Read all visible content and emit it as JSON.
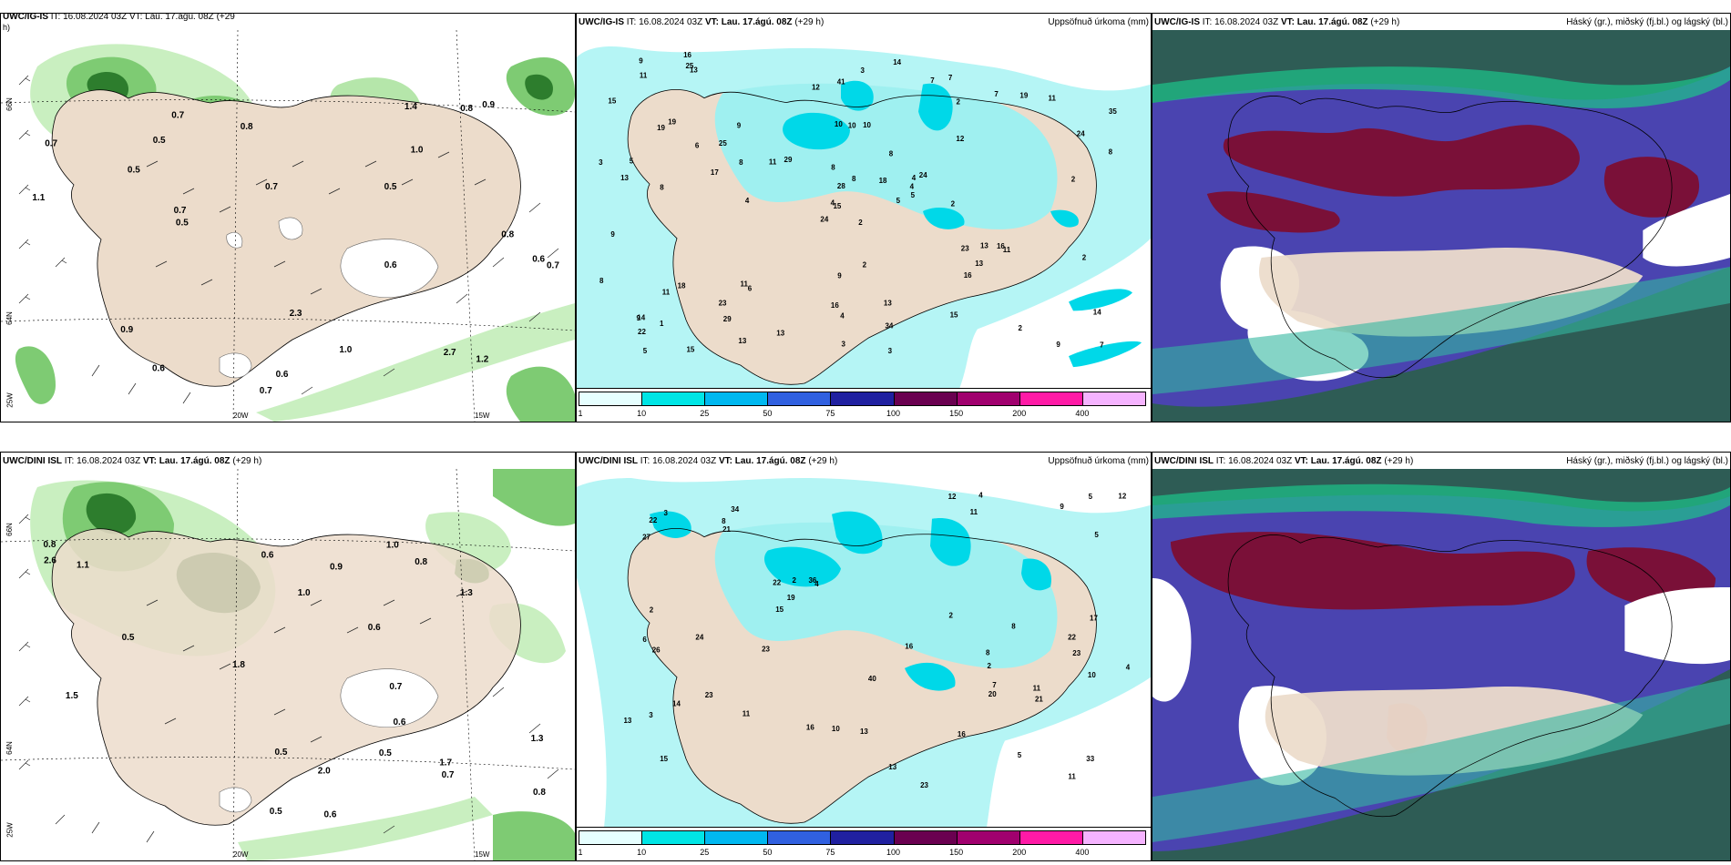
{
  "panels": {
    "ig_wind": {
      "title_model": "UWC/IG-IS",
      "title_rest": " IT: 16.08.2024 03Z VT: Lau. 17.ágú. 08Z (+29",
      "title_suffix": "h)"
    },
    "ig_precip": {
      "title_model": "UWC/IG-IS",
      "title_it": " IT: 16.08.2024 03Z ",
      "title_vt": "VT: Lau. 17.ágú. 08Z",
      "title_hours": " (+29 h)",
      "title_right": "Uppsöfnuð úrkoma (mm)"
    },
    "ig_cloud": {
      "title_model": "UWC/IG-IS",
      "title_it": " IT: 16.08.2024 03Z ",
      "title_vt": "VT: Lau. 17.ágú. 08Z",
      "title_hours": " (+29 h)",
      "title_right": "Háský (gr.), miðský (fj.bl.) og lágský (bl.)"
    },
    "dini_wind": {
      "title_model": "UWC/DINI ISL",
      "title_it": " IT: 16.08.2024 03Z ",
      "title_vt": "VT: Lau. 17.ágú. 08Z",
      "title_hours": " (+29 h)"
    },
    "dini_precip": {
      "title_model": "UWC/DINI ISL",
      "title_it": " IT: 16.08.2024 03Z ",
      "title_vt": "VT: Lau. 17.ágú. 08Z",
      "title_hours": " (+29 h)",
      "title_right": "Uppsöfnuð úrkoma (mm)"
    },
    "dini_cloud": {
      "title_model": "UWC/DINI ISL",
      "title_it": " IT: 16.08.2024 03Z ",
      "title_vt": "VT: Lau. 17.ágú. 08Z",
      "title_hours": " (+29 h)",
      "title_right": "Háský (gr.), miðský (fj.bl.) og lágský (bl.)"
    }
  },
  "axis_labels": {
    "lat_66": "66N",
    "lat_64": "64N",
    "lon_20": "20W",
    "lon_15": "15W",
    "lon_25": "25W"
  },
  "colorbar": {
    "labels": [
      "1",
      "10",
      "25",
      "50",
      "75",
      "100",
      "150",
      "200",
      "400"
    ],
    "colors": [
      "#e6ffff",
      "#00e5e5",
      "#00b8f0",
      "#3060e0",
      "#2020a0",
      "#6a0050",
      "#a0006e",
      "#ff1aa6",
      "#f5b3ff"
    ]
  },
  "precip_values_top": [
    "2",
    "19",
    "15",
    "14",
    "4",
    "6",
    "7",
    "10",
    "2",
    "5",
    "13",
    "7",
    "8",
    "35",
    "24",
    "12",
    "15",
    "10",
    "8",
    "18",
    "29",
    "22",
    "29",
    "10",
    "24",
    "11",
    "19",
    "41",
    "13",
    "23",
    "8",
    "4",
    "16",
    "28",
    "9",
    "7",
    "11",
    "9",
    "14",
    "16",
    "14",
    "11",
    "17",
    "16",
    "13",
    "3",
    "4",
    "5",
    "4",
    "5",
    "11",
    "24",
    "15",
    "13",
    "15",
    "23",
    "25",
    "9",
    "13",
    "11",
    "3",
    "4",
    "5",
    "25",
    "19",
    "16",
    "7",
    "12",
    "8",
    "8",
    "9",
    "13",
    "13",
    "8",
    "9",
    "11",
    "6",
    "9",
    "8",
    "34",
    "18",
    "1",
    "2",
    "2",
    "3",
    "2",
    "2",
    "2",
    "3"
  ],
  "wind_values_top": [
    "0.7",
    "0.5",
    "0.5",
    "0.6",
    "0.8",
    "0.7",
    "0.6",
    "0.5",
    "0.9",
    "0.7",
    "0.6",
    "0.7",
    "1.0",
    "0.9",
    "1.1",
    "0.6",
    "0.7",
    "0.8",
    "1.2",
    "1.0",
    "2.7",
    "0.8",
    "0.7",
    "2.3",
    "1.4",
    "0.5"
  ],
  "wind_values_bottom": [
    "1.0",
    "0.7",
    "0.8",
    "1.3",
    "0.5",
    "0.6",
    "0.6",
    "1.0",
    "0.5",
    "1.5",
    "1.7",
    "0.9",
    "0.7",
    "1.1",
    "0.8",
    "0.8",
    "1.3",
    "0.5",
    "2.0",
    "0.6",
    "2.6",
    "0.5",
    "0.6",
    "1.8"
  ],
  "precip_values_bottom": [
    "2",
    "23",
    "15",
    "34",
    "4",
    "5",
    "3",
    "11",
    "22",
    "23",
    "27",
    "6",
    "22",
    "33",
    "16",
    "17",
    "40",
    "16",
    "36",
    "23",
    "12",
    "9",
    "15",
    "10",
    "12",
    "8",
    "7",
    "26",
    "21",
    "8",
    "13",
    "16",
    "19",
    "23",
    "22",
    "21",
    "20",
    "24",
    "13",
    "14",
    "5",
    "4",
    "11",
    "10",
    "11",
    "11",
    "13",
    "3",
    "2",
    "2",
    "4",
    "2",
    "5",
    "8"
  ]
}
